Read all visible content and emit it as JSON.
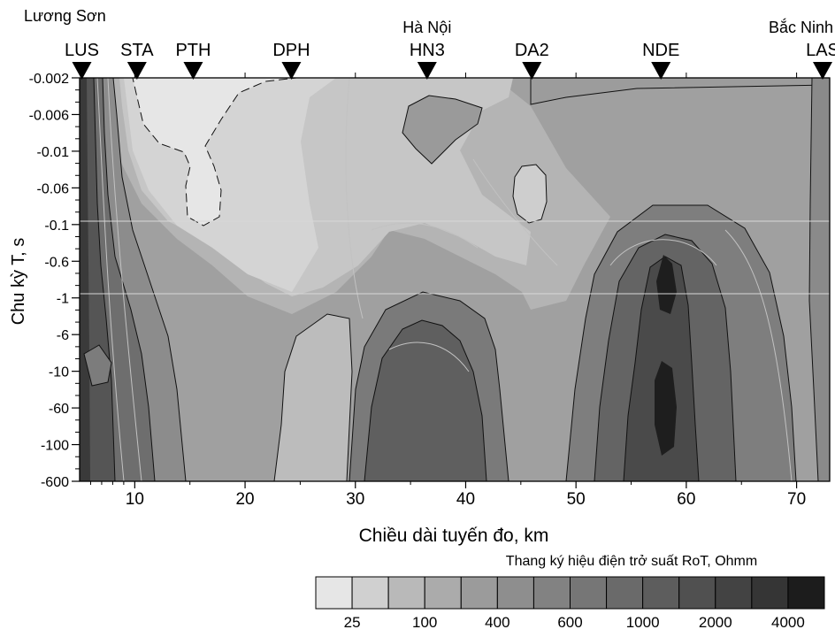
{
  "chart_data": {
    "type": "heatmap",
    "title": "",
    "xlabel": "Chiều dài tuyến đo, km",
    "ylabel": "Chu kỳ T, s",
    "xlim": [
      5,
      73
    ],
    "x_ticks": [
      "10",
      "20",
      "30",
      "40",
      "50",
      "60",
      "70"
    ],
    "x_tick_values": [
      10,
      20,
      30,
      40,
      50,
      60,
      70
    ],
    "y_tick_labels": [
      "-0.002",
      "-0.006",
      "-0.01",
      "-0.06",
      "-0.1",
      "-0.6",
      "-1",
      "-6",
      "-10",
      "-60",
      "-100",
      "-600"
    ],
    "place_labels": [
      {
        "name": "Lương Sơn",
        "x": 5
      },
      {
        "name": "Hà Nội",
        "x": 36.5
      },
      {
        "name": "Bắc Ninh",
        "x": 73
      }
    ],
    "stations": [
      {
        "name": "LUS",
        "x": 5.2
      },
      {
        "name": "STA",
        "x": 10.2
      },
      {
        "name": "PTH",
        "x": 15.3
      },
      {
        "name": "DPH",
        "x": 24.2
      },
      {
        "name": "HN3",
        "x": 36.5
      },
      {
        "name": "DA2",
        "x": 46
      },
      {
        "name": "NDE",
        "x": 57.7
      },
      {
        "name": "LAS",
        "x": 72.5
      }
    ],
    "legend": {
      "title": "Thang ký hiệu điện trở suất RoT, Ohmm",
      "boundary_labels": [
        "25",
        "100",
        "400",
        "600",
        "1000",
        "2000",
        "4000"
      ],
      "colors": [
        "#e6e6e6",
        "#d0d0d0",
        "#b9b9b9",
        "#ababab",
        "#9b9b9b",
        "#8e8e8e",
        "#828282",
        "#767676",
        "#6a6a6a",
        "#5d5d5d",
        "#505050",
        "#434343",
        "#353535",
        "#1c1c1c"
      ]
    }
  }
}
